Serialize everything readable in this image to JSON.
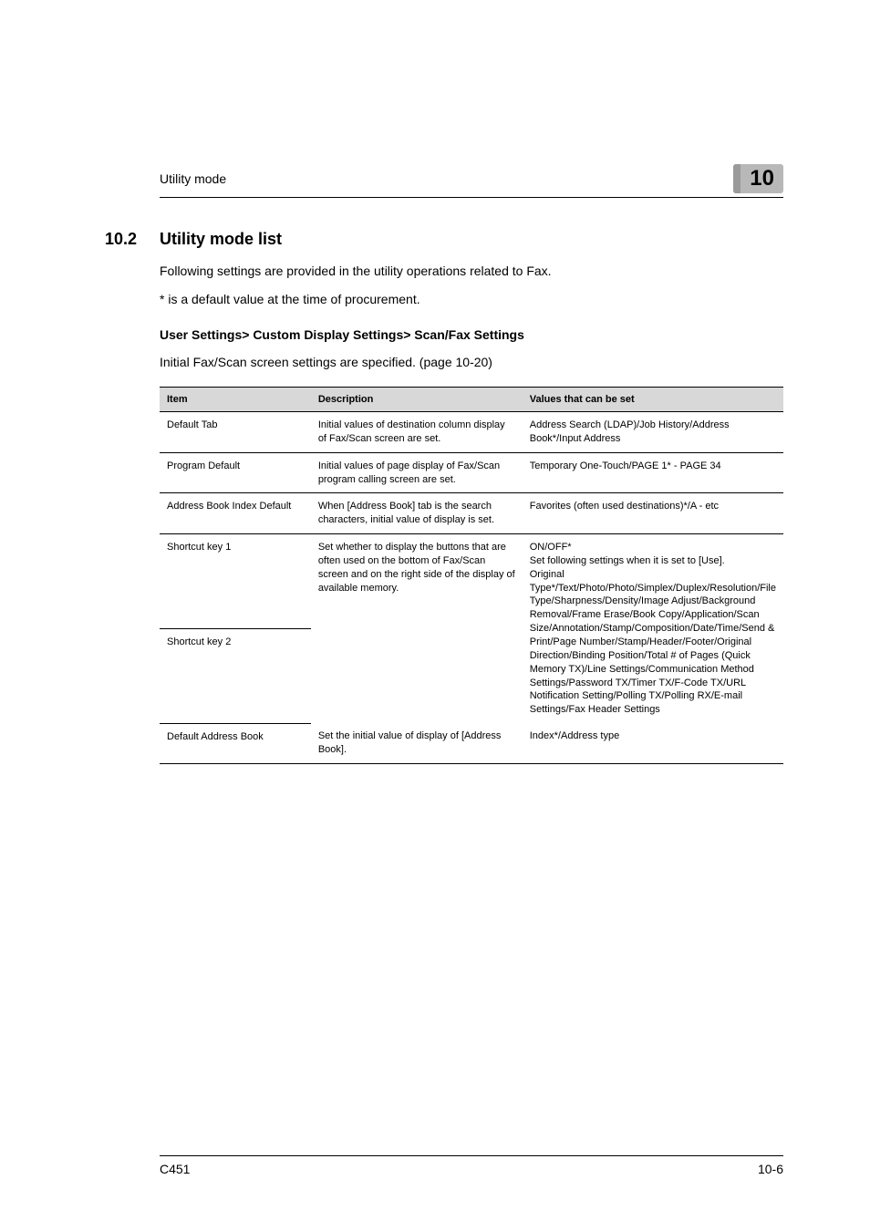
{
  "header": {
    "left": "Utility mode",
    "chapter": "10"
  },
  "section": {
    "number": "10.2",
    "title": "Utility mode list"
  },
  "intro": {
    "line1": "Following settings are provided in the utility operations related to Fax.",
    "line2": "* is a default value at the time of procurement."
  },
  "subsection": {
    "heading": "User Settings> Custom Display Settings> Scan/Fax Settings",
    "caption": "Initial Fax/Scan screen settings are specified. (page 10-20)"
  },
  "table": {
    "columns": [
      "Item",
      "Description",
      "Values that can be set"
    ],
    "rows": [
      {
        "item": "Default Tab",
        "desc": "Initial values of destination column display of Fax/Scan screen are set.",
        "values": "Address Search (LDAP)/Job History/Address Book*/Input Address"
      },
      {
        "item": "Program Default",
        "desc": "Initial values of page display of Fax/Scan program calling screen are set.",
        "values": "Temporary One-Touch/PAGE 1* - PAGE 34"
      },
      {
        "item": "Address Book Index Default",
        "desc": "When [Address Book] tab is the search characters, initial value of display is set.",
        "values": "Favorites (often used destinations)*/A - etc"
      },
      {
        "item": "Shortcut key 1",
        "item2": "Shortcut key 2",
        "desc": "Set whether to display the buttons that are often used on the bottom of Fax/Scan screen and on the right side of the display of available memory.",
        "values": "ON/OFF*\nSet following settings when it is set to [Use].\nOriginal Type*/Text/Photo/Photo/Simplex/Duplex/Resolution/File Type/Sharpness/Density/Image Adjust/Background Removal/Frame Erase/Book Copy/Application/Scan Size/Annotation/Stamp/Composition/Date/Time/Send & Print/Page Number/Stamp/Header/Footer/Original Direction/Binding Position/Total # of Pages (Quick Memory TX)/Line Settings/Communication Method Settings/Password TX/Timer TX/F-Code TX/URL Notification Setting/Polling TX/Polling RX/E-mail Settings/Fax Header Settings"
      },
      {
        "item": "Default Address Book",
        "desc": "Set the initial value of display of [Address Book].",
        "values": "Index*/Address type"
      }
    ]
  },
  "footer": {
    "left": "C451",
    "right": "10-6"
  }
}
